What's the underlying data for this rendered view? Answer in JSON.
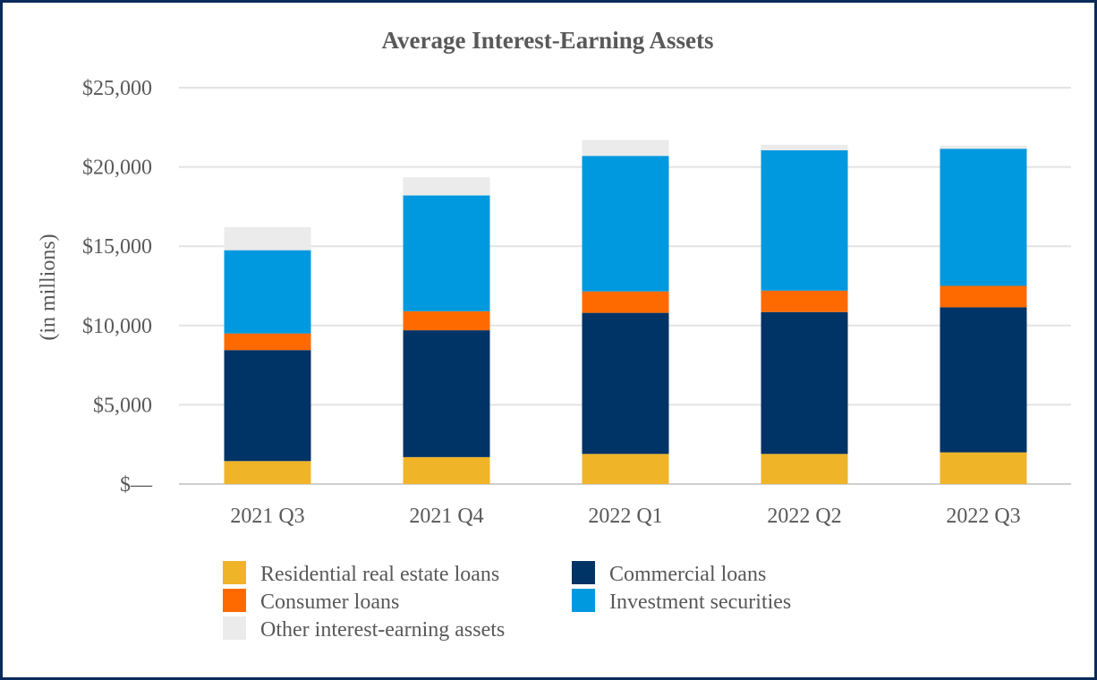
{
  "chart_data": {
    "type": "bar",
    "stacked": true,
    "title": "Average Interest-Earning Assets",
    "xlabel": "",
    "ylabel": "(in millions)",
    "ylim": [
      0,
      25000
    ],
    "yticks": [
      0,
      5000,
      10000,
      15000,
      20000,
      25000
    ],
    "ytick_labels": [
      "$—",
      "$5,000",
      "$10,000",
      "$15,000",
      "$20,000",
      "$25,000"
    ],
    "grid": true,
    "legend_position": "bottom",
    "categories": [
      "2021 Q3",
      "2021 Q4",
      "2022 Q1",
      "2022 Q2",
      "2022 Q3"
    ],
    "series": [
      {
        "name": "Residential real estate loans",
        "color": "#f0b429",
        "values": [
          1450,
          1700,
          1900,
          1900,
          2000
        ]
      },
      {
        "name": "Commercial loans",
        "color": "#003366",
        "values": [
          7000,
          8000,
          8900,
          8950,
          9150
        ]
      },
      {
        "name": "Consumer loans",
        "color": "#ff6a00",
        "values": [
          1050,
          1200,
          1350,
          1350,
          1350
        ]
      },
      {
        "name": "Investment securities",
        "color": "#0099e0",
        "values": [
          5250,
          7300,
          8550,
          8850,
          8650
        ]
      },
      {
        "name": "Other interest-earning assets",
        "color": "#ebebeb",
        "values": [
          1450,
          1150,
          1000,
          350,
          200
        ]
      }
    ]
  }
}
